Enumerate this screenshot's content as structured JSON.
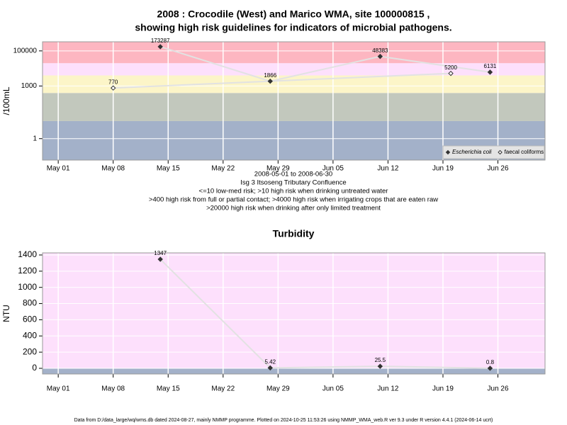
{
  "chart_data": [
    {
      "type": "line",
      "title": [
        "2008 : Crocodile (West) and Marico WMA, site 100000815 ,",
        "showing high risk guidelines for indicators of microbial pathogens."
      ],
      "y_label": "/100mL",
      "log_y": true,
      "ylim": [
        0.06,
        330000
      ],
      "yticks": [
        1,
        1000,
        100000
      ],
      "xlim": [
        "2008-04-29",
        "2008-07-02"
      ],
      "xticks": [
        {
          "value": "2008-05-01",
          "label": "May 01"
        },
        {
          "value": "2008-05-08",
          "label": "May 08"
        },
        {
          "value": "2008-05-15",
          "label": "May 15"
        },
        {
          "value": "2008-05-22",
          "label": "May 22"
        },
        {
          "value": "2008-05-29",
          "label": "May 29"
        },
        {
          "value": "2008-06-05",
          "label": "Jun 05"
        },
        {
          "value": "2008-06-12",
          "label": "Jun 12"
        },
        {
          "value": "2008-06-19",
          "label": "Jun 19"
        },
        {
          "value": "2008-06-26",
          "label": "Jun 26"
        }
      ],
      "grid": true,
      "band_breaks": [
        10,
        400,
        4000,
        20000
      ],
      "band_colors": [
        "#a3b1c9",
        "#c2c8bd",
        "#fcf5c8",
        "#fde0fc",
        "#fdb6c1"
      ],
      "legend": "bottom-right",
      "series": [
        {
          "name": "Escherichia coli",
          "color": "#333333",
          "marker": "filled",
          "x": [
            "2008-05-14",
            "2008-05-28",
            "2008-06-11",
            "2008-06-25"
          ],
          "values": [
            173287,
            1866,
            48383,
            6131
          ]
        },
        {
          "name": "faecal coliforms",
          "color": "#333333",
          "marker": "open",
          "x": [
            "2008-05-08",
            "2008-06-20"
          ],
          "values": [
            770,
            5200
          ]
        }
      ],
      "notes": [
        "2008-05-01 to 2008-06-30",
        "Isg 3 Itsoseng Tributary Confluence",
        "<=10 low-med risk; >10 high risk when drinking untreated water",
        ">400 high risk from full or partial contact; >4000 high risk when irrigating crops that are eaten raw",
        ">20000 high risk when drinking after only limited treatment"
      ]
    },
    {
      "type": "line",
      "title": [
        "Turbidity"
      ],
      "y_label": "NTU",
      "log_y": false,
      "ylim": [
        -70,
        1426
      ],
      "yticks": [
        0,
        200,
        400,
        600,
        800,
        1000,
        1200,
        1400
      ],
      "xlim": [
        "2008-04-29",
        "2008-07-02"
      ],
      "xticks": [
        {
          "value": "2008-05-01",
          "label": "May 01"
        },
        {
          "value": "2008-05-08",
          "label": "May 08"
        },
        {
          "value": "2008-05-15",
          "label": "May 15"
        },
        {
          "value": "2008-05-22",
          "label": "May 22"
        },
        {
          "value": "2008-05-29",
          "label": "May 29"
        },
        {
          "value": "2008-06-05",
          "label": "Jun 05"
        },
        {
          "value": "2008-06-12",
          "label": "Jun 12"
        },
        {
          "value": "2008-06-19",
          "label": "Jun 19"
        },
        {
          "value": "2008-06-26",
          "label": "Jun 26"
        }
      ],
      "grid": true,
      "band_breaks": [
        5
      ],
      "band_colors": [
        "#a3b1c9",
        "#fde0fc"
      ],
      "series": [
        {
          "color": "#333333",
          "marker": "filled",
          "x": [
            "2008-05-14",
            "2008-05-28",
            "2008-06-11",
            "2008-06-25"
          ],
          "values": [
            1347,
            5.42,
            25.5,
            0.8
          ]
        }
      ]
    }
  ],
  "footer": "Data from D:/data_large/wq/wms.db dated 2024-08-27, mainly NMMP programme. Plotted on 2024-10-25 11:53:26 using NMMP_WMA_web.R ver 9.3 under R version 4.4.1 (2024-06-14 ucrt)"
}
